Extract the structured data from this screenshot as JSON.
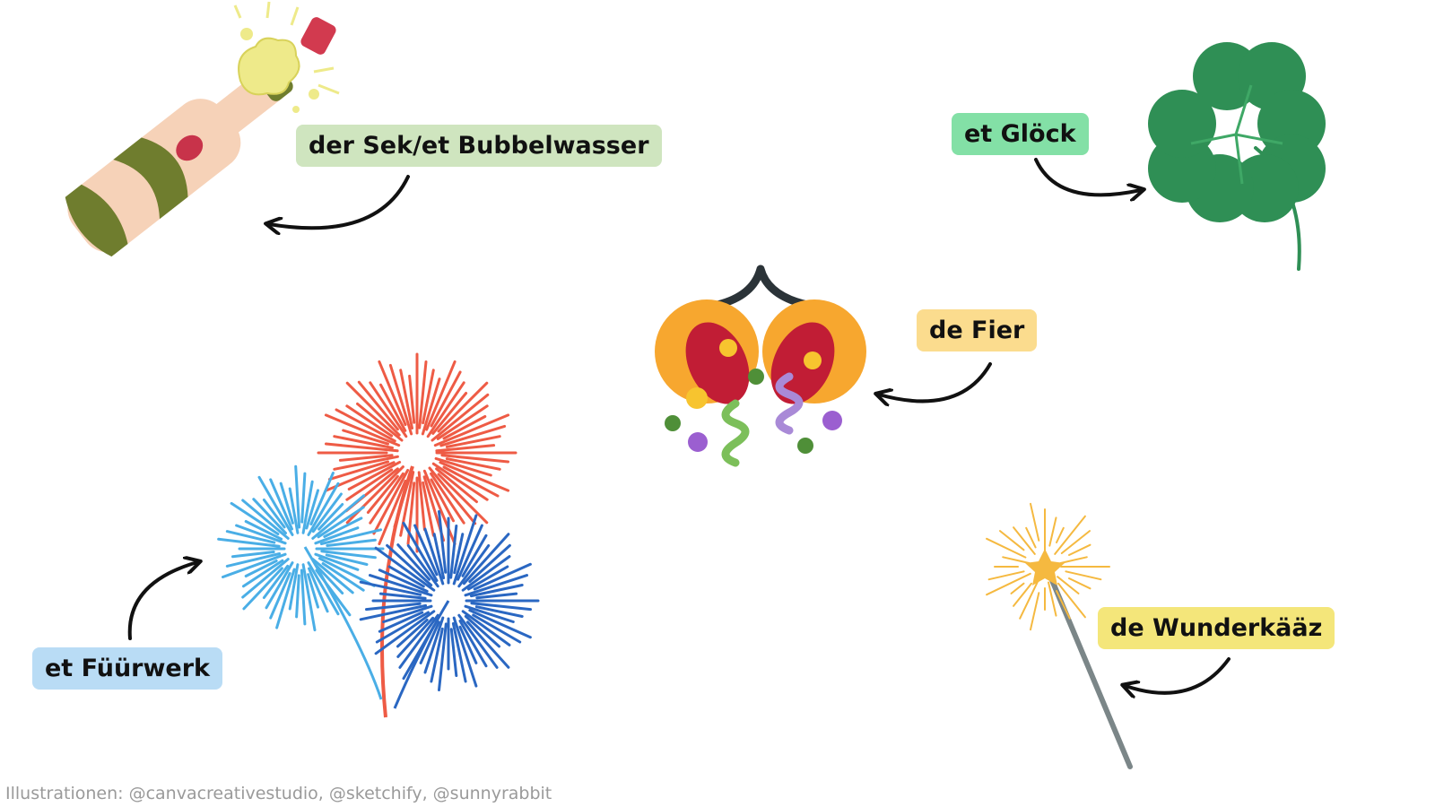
{
  "labels": {
    "sekt": {
      "text": "der Sek/et Bubbelwasser",
      "color": "#cfe5bf"
    },
    "glueck": {
      "text": "et Glöck",
      "color": "#83e0a6"
    },
    "fier": {
      "text": "de Fier",
      "color": "#fbdc8e"
    },
    "fuerwerk": {
      "text": "et Füürwerk",
      "color": "#b9dcf5"
    },
    "wunder": {
      "text": "de Wunderkääz",
      "color": "#f4e67a"
    }
  },
  "credit": "Illustrationen: @canvacreativestudio, @sketchify, @sunnyrabbit",
  "icons": {
    "champagne": "champagne-bottle-icon",
    "clover": "four-leaf-clover-icon",
    "party": "party-popper-icon",
    "fireworks": "fireworks-icon",
    "sparkler": "sparkler-icon"
  },
  "colors": {
    "bottle_body": "#f6d2b8",
    "bottle_green": "#6f7d2e",
    "clover": "#2f8f55",
    "firework_red": "#ee5b45",
    "firework_lightblue": "#4aaee6",
    "firework_blue": "#2a67c2"
  }
}
